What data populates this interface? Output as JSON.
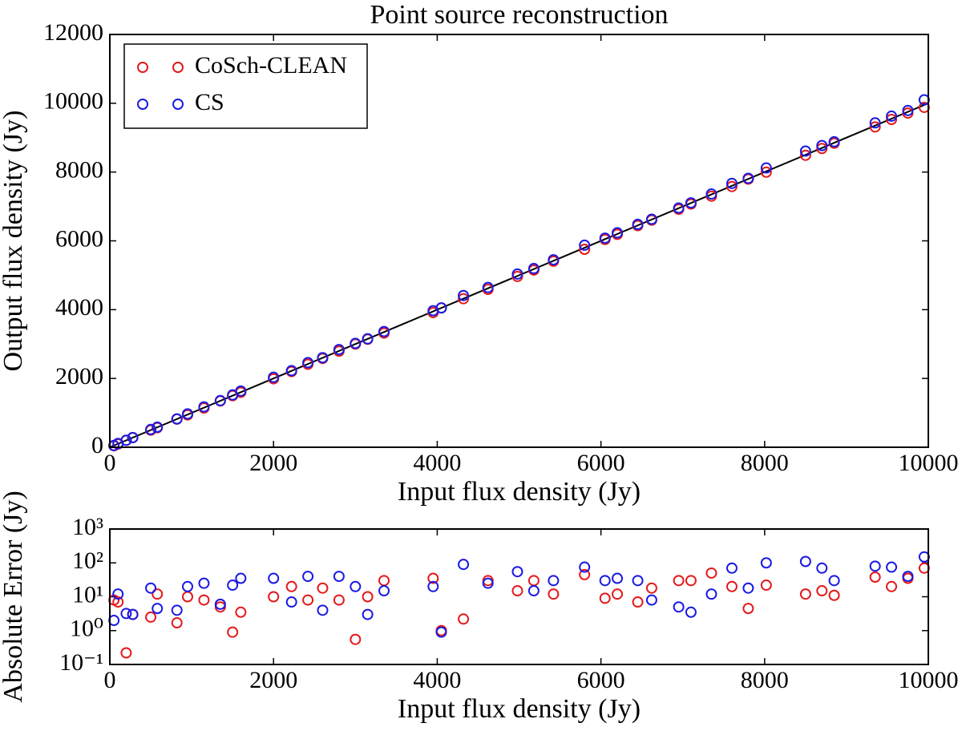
{
  "chart_data": [
    {
      "type": "scatter",
      "title": "Point source reconstruction",
      "xlabel": "Input flux density (Jy)",
      "ylabel": "Output flux density (Jy)",
      "xlim": [
        0,
        10000
      ],
      "ylim": [
        0,
        12000
      ],
      "xticks": [
        0,
        2000,
        4000,
        6000,
        8000,
        10000
      ],
      "yticks": [
        0,
        2000,
        4000,
        6000,
        8000,
        10000,
        12000
      ],
      "legend": "upper left",
      "reference_line": {
        "x": [
          0,
          10000
        ],
        "y": [
          0,
          10000
        ],
        "color": "#000000"
      },
      "x": [
        50,
        100,
        200,
        280,
        500,
        580,
        820,
        950,
        1150,
        1350,
        1500,
        1600,
        2000,
        2220,
        2420,
        2600,
        2800,
        3000,
        3150,
        3350,
        3950,
        4050,
        4320,
        4620,
        4980,
        5180,
        5420,
        5800,
        6050,
        6200,
        6450,
        6620,
        6950,
        7100,
        7350,
        7600,
        7800,
        8020,
        8500,
        8700,
        8850,
        9350,
        9550,
        9750,
        9950
      ],
      "series": [
        {
          "name": "CoSch-CLEAN",
          "color": "#e41a1c",
          "values": [
            42,
            93,
            200,
            277,
            498,
            568,
            818,
            940,
            1142,
            1345,
            1499,
            1597,
            1990,
            2200,
            2412,
            2582,
            2792,
            3000,
            3140,
            3320,
            3915,
            4049,
            4318,
            4590,
            4965,
            5150,
            5408,
            5755,
            6041,
            6188,
            6443,
            6602,
            6920,
            7070,
            7300,
            7580,
            7795,
            7998,
            8488,
            8685,
            8839,
            9312,
            9530,
            9715,
            9880
          ]
        },
        {
          "name": "CS",
          "color": "#1a1ae4",
          "values": [
            52,
            112,
            203,
            283,
            518,
            585,
            824,
            970,
            1175,
            1356,
            1522,
            1635,
            2035,
            2227,
            2460,
            2604,
            2840,
            3020,
            3153,
            3365,
            3970,
            4051,
            4410,
            4645,
            5035,
            5195,
            5450,
            5875,
            6080,
            6235,
            6480,
            6628,
            6955,
            7104,
            7362,
            7670,
            7818,
            8120,
            8610,
            8770,
            8880,
            9430,
            9625,
            9790,
            10100
          ]
        }
      ]
    },
    {
      "type": "scatter",
      "xlabel": "Input flux density (Jy)",
      "ylabel": "Absolute Error (Jy)",
      "xlim": [
        0,
        10000
      ],
      "ylim": [
        0.1,
        1000
      ],
      "yscale": "log",
      "xticks": [
        0,
        2000,
        4000,
        6000,
        8000,
        10000
      ],
      "yticks": [
        {
          "value": 0.1,
          "label": "10⁻¹"
        },
        {
          "value": 1,
          "label": "10⁰"
        },
        {
          "value": 10,
          "label": "10¹"
        },
        {
          "value": 100,
          "label": "10²"
        },
        {
          "value": 1000,
          "label": "10³"
        }
      ],
      "x": [
        50,
        100,
        200,
        280,
        500,
        580,
        820,
        950,
        1150,
        1350,
        1500,
        1600,
        2000,
        2220,
        2420,
        2600,
        2800,
        3000,
        3150,
        3350,
        3950,
        4050,
        4320,
        4620,
        4980,
        5180,
        5420,
        5800,
        6050,
        6200,
        6450,
        6620,
        6950,
        7100,
        7350,
        7600,
        7800,
        8020,
        8500,
        8700,
        8850,
        9350,
        9550,
        9750,
        9950
      ],
      "series": [
        {
          "color": "#e41a1c",
          "values": [
            8,
            7,
            0.22,
            3,
            2.5,
            12,
            1.7,
            10,
            8,
            5,
            0.9,
            3.5,
            10,
            20,
            8,
            18,
            8,
            0.55,
            10,
            30,
            35,
            1,
            2.2,
            30,
            15,
            30,
            12,
            45,
            9,
            12,
            7,
            18,
            30,
            30,
            50,
            20,
            4.5,
            22,
            12,
            15,
            11,
            38,
            20,
            35,
            70
          ]
        },
        {
          "color": "#1a1ae4",
          "values": [
            2,
            12,
            3.2,
            3,
            18,
            4.5,
            4,
            20,
            25,
            6,
            22,
            35,
            35,
            7,
            40,
            4,
            40,
            20,
            3,
            15,
            20,
            0.9,
            90,
            25,
            55,
            15,
            30,
            75,
            30,
            35,
            30,
            8,
            5,
            3.5,
            12,
            70,
            18,
            100,
            110,
            70,
            30,
            80,
            75,
            40,
            150
          ]
        }
      ]
    }
  ]
}
